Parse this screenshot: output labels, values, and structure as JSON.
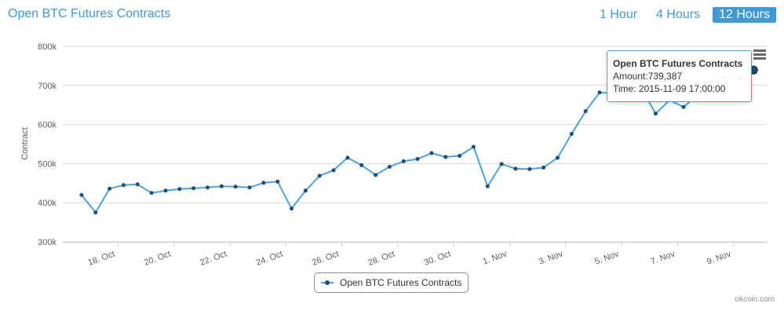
{
  "header": {
    "title": "Open BTC Futures Contracts",
    "ranges": [
      "1 Hour",
      "4 Hours",
      "12 Hours"
    ],
    "active_range": "12 Hours"
  },
  "colors": {
    "line": "#4aa3df",
    "marker": "#1a4d7a",
    "accent": "#3e9ad6",
    "grid": "#d8d8d8"
  },
  "chart_data": {
    "type": "line",
    "title": "Open BTC Futures Contracts",
    "ylabel": "Contract",
    "xlabel": "",
    "ylim": [
      300000,
      800000
    ],
    "yticks": [
      300000,
      400000,
      500000,
      600000,
      700000,
      800000
    ],
    "ytick_labels": [
      "300k",
      "400k",
      "500k",
      "600k",
      "700k",
      "800k"
    ],
    "xtick_labels": [
      "18. Oct",
      "20. Oct",
      "22. Oct",
      "24. Oct",
      "26. Oct",
      "28. Oct",
      "30. Oct",
      "1. Nov",
      "3. Nov",
      "5. Nov",
      "7. Nov",
      "9. Nov"
    ],
    "xtick_dates": [
      "2015-10-18",
      "2015-10-20",
      "2015-10-22",
      "2015-10-24",
      "2015-10-26",
      "2015-10-28",
      "2015-10-30",
      "2015-11-01",
      "2015-11-03",
      "2015-11-05",
      "2015-11-07",
      "2015-11-09"
    ],
    "grid": true,
    "legend_position": "bottom-center",
    "series": [
      {
        "name": "Open BTC Futures Contracts",
        "x": [
          "2015-10-16 17:00",
          "2015-10-17 05:00",
          "2015-10-17 17:00",
          "2015-10-18 05:00",
          "2015-10-18 17:00",
          "2015-10-19 05:00",
          "2015-10-19 17:00",
          "2015-10-20 05:00",
          "2015-10-20 17:00",
          "2015-10-21 05:00",
          "2015-10-21 17:00",
          "2015-10-22 05:00",
          "2015-10-22 17:00",
          "2015-10-23 05:00",
          "2015-10-23 17:00",
          "2015-10-24 05:00",
          "2015-10-24 17:00",
          "2015-10-25 05:00",
          "2015-10-25 17:00",
          "2015-10-26 05:00",
          "2015-10-26 17:00",
          "2015-10-27 05:00",
          "2015-10-27 17:00",
          "2015-10-28 05:00",
          "2015-10-28 17:00",
          "2015-10-29 05:00",
          "2015-10-29 17:00",
          "2015-10-30 05:00",
          "2015-10-30 17:00",
          "2015-10-31 05:00",
          "2015-10-31 17:00",
          "2015-11-01 05:00",
          "2015-11-01 17:00",
          "2015-11-02 05:00",
          "2015-11-02 17:00",
          "2015-11-03 05:00",
          "2015-11-03 17:00",
          "2015-11-04 05:00",
          "2015-11-04 17:00",
          "2015-11-05 05:00",
          "2015-11-05 17:00",
          "2015-11-06 05:00",
          "2015-11-06 17:00",
          "2015-11-07 05:00",
          "2015-11-07 17:00",
          "2015-11-08 05:00",
          "2015-11-08 17:00",
          "2015-11-09 05:00",
          "2015-11-09 17:00"
        ],
        "values": [
          420000,
          375000,
          436000,
          445000,
          447000,
          425000,
          431000,
          435000,
          437000,
          439000,
          442000,
          441000,
          439000,
          451000,
          454000,
          385000,
          431000,
          469000,
          483000,
          515000,
          496000,
          471000,
          492000,
          506000,
          512000,
          527000,
          517000,
          520000,
          543000,
          442000,
          499000,
          487000,
          486000,
          490000,
          515000,
          576000,
          634000,
          682000,
          680000,
          678000,
          692000,
          628000,
          662000,
          645000,
          675000,
          710000,
          720000,
          718000,
          739387
        ]
      }
    ]
  },
  "tooltip": {
    "title": "Open BTC Futures Contracts",
    "amount": "Amount:739,387",
    "time": "Time: 2015-11-09 17:00:00"
  },
  "legend": {
    "label": "Open BTC Futures Contracts"
  },
  "credit": "okcoin.com"
}
